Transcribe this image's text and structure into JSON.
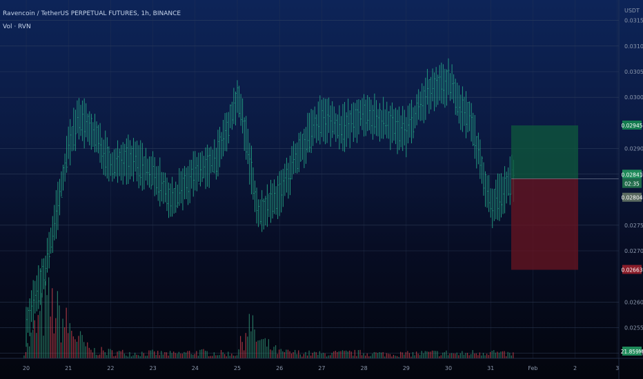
{
  "header": {
    "title": "Ravencoin / TetherUS PERPETUAL FUTURES, 1h, BINANCE",
    "volume_label": "Vol · RVN"
  },
  "colors": {
    "candle": "#25a685",
    "volume": "#2f8f72",
    "volume_down": "#c8414c",
    "profit_zone": "#0f5a3c",
    "loss_zone": "#6a1420",
    "axis_text": "#8c98ad"
  },
  "chart_data": {
    "type": "line",
    "title": "Ravencoin / TetherUS PERPETUAL FUTURES, 1h, BINANCE",
    "price_unit": "USDT",
    "ylim": [
      0.0249,
      0.0319
    ],
    "y_ticks": [
      "0.03150",
      "0.03100",
      "0.03050",
      "0.03000",
      "0.02900",
      "0.02850",
      "0.02750",
      "0.02700",
      "0.02600",
      "0.02550",
      "0.02500"
    ],
    "x_tick_labels": [
      "20",
      "21",
      "22",
      "23",
      "24",
      "25",
      "26",
      "27",
      "28",
      "29",
      "30",
      "31",
      "Feb",
      "2",
      "3"
    ],
    "grid": true,
    "series": [
      {
        "name": "",
        "style": "hlc-bars",
        "x": [
          "20 00:00",
          "20 12:00",
          "21 00:00",
          "21 06:00",
          "21 12:00",
          "22 00:00",
          "22 12:00",
          "23 00:00",
          "23 12:00",
          "24 00:00",
          "24 12:00",
          "25 00:00",
          "25 06:00",
          "25 12:00",
          "26 00:00",
          "26 12:00",
          "27 00:00",
          "27 12:00",
          "28 00:00",
          "28 12:00",
          "29 00:00",
          "29 12:00",
          "30 00:00",
          "30 06:00",
          "30 12:00",
          "31 00:00",
          "31 06:00",
          "31 12:00"
        ],
        "values": [
          0.0255,
          0.0268,
          0.029,
          0.0296,
          0.0294,
          0.0287,
          0.0288,
          0.0285,
          0.028,
          0.0285,
          0.0288,
          0.03,
          0.029,
          0.0277,
          0.0281,
          0.029,
          0.0296,
          0.0294,
          0.0297,
          0.0295,
          0.0293,
          0.0301,
          0.0303,
          0.0299,
          0.0296,
          0.0279,
          0.0281,
          0.0284
        ]
      }
    ],
    "volume_relative": [
      0.1,
      0.62,
      0.35,
      0.22,
      0.09,
      0.07,
      0.06,
      0.06,
      0.05,
      0.07,
      0.06,
      0.05,
      0.4,
      0.2,
      0.07,
      0.06,
      0.05,
      0.06,
      0.06,
      0.05,
      0.05,
      0.06,
      0.06,
      0.05,
      0.06,
      0.08,
      0.05,
      0.05
    ],
    "position": {
      "type": "long",
      "entry": "0.02841",
      "entry_secondary": "02:35",
      "target": "0.02945",
      "stop": "0.02804",
      "stop_secondary": "0.02663"
    },
    "last_volume_label": "21.859M"
  }
}
